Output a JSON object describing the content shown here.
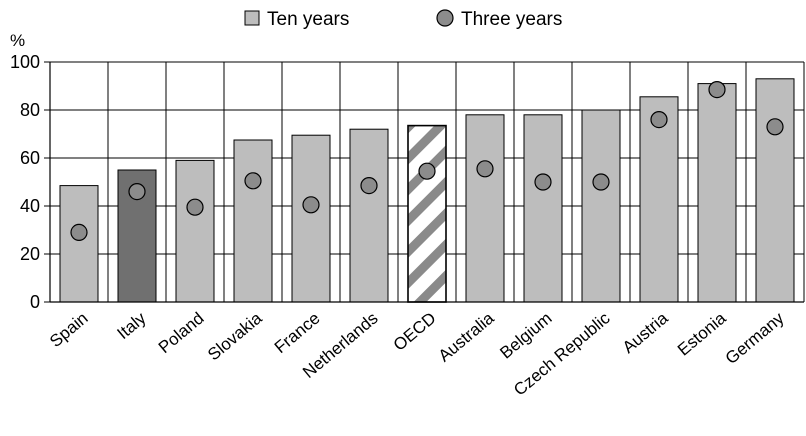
{
  "chart_data": {
    "type": "bar",
    "title": "",
    "xlabel": "",
    "ylabel": "%",
    "ylim": [
      0,
      100
    ],
    "yticks": [
      0,
      20,
      40,
      60,
      80,
      100
    ],
    "grid": "horizontal",
    "legend": "top",
    "categories": [
      "Spain",
      "Italy",
      "Poland",
      "Slovakia",
      "France",
      "Netherlands",
      "OECD",
      "Australia",
      "Belgium",
      "Czech Republic",
      "Austria",
      "Estonia",
      "Germany"
    ],
    "series": [
      {
        "name": "Ten years",
        "mark": "bar",
        "values": [
          48.5,
          55,
          59,
          67.5,
          69.5,
          72,
          73.5,
          78,
          78,
          80,
          85.5,
          91,
          93
        ]
      },
      {
        "name": "Three years",
        "mark": "circle",
        "values": [
          29,
          46,
          39.5,
          50.5,
          40.5,
          48.5,
          54.5,
          55.5,
          50,
          50,
          76,
          88.5,
          73
        ]
      }
    ],
    "highlight": {
      "Italy": "dark",
      "OECD": "hatched"
    },
    "colors": {
      "bar": "#bdbdbd",
      "bar_dark": "#707070",
      "hatch": "#8a8a8a",
      "marker": "#8c8c8c",
      "outline": "#000000",
      "grid": "#000000"
    }
  }
}
